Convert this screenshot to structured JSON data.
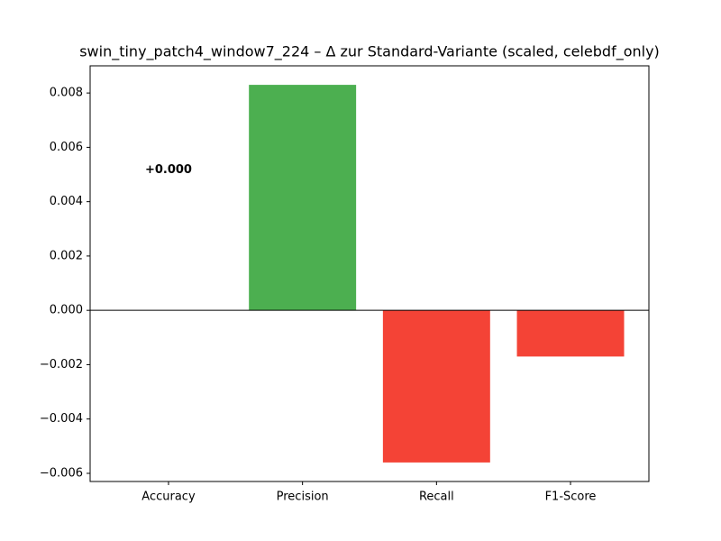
{
  "chart_data": {
    "type": "bar",
    "title": "swin_tiny_patch4_window7_224 – Δ zur Standard-Variante (scaled, celebdf_only)",
    "categories": [
      "Accuracy",
      "Precision",
      "Recall",
      "F1-Score"
    ],
    "values": [
      0,
      0.0083,
      -0.0056,
      -0.0017
    ],
    "value_labels": [
      "+0.000",
      null,
      null,
      null
    ],
    "colors": [
      "#4caf50",
      "#4caf50",
      "#f44336",
      "#f44336"
    ],
    "ylim": [
      -0.0063,
      0.009
    ],
    "yticks": [
      {
        "value": -0.006,
        "label": "−0.006"
      },
      {
        "value": -0.004,
        "label": "−0.004"
      },
      {
        "value": -0.002,
        "label": "−0.002"
      },
      {
        "value": 0,
        "label": "0.000"
      },
      {
        "value": 0.002,
        "label": "0.002"
      },
      {
        "value": 0.004,
        "label": "0.004"
      },
      {
        "value": 0.006,
        "label": "0.006"
      },
      {
        "value": 0.008,
        "label": "0.008"
      }
    ],
    "zero_line": true
  }
}
